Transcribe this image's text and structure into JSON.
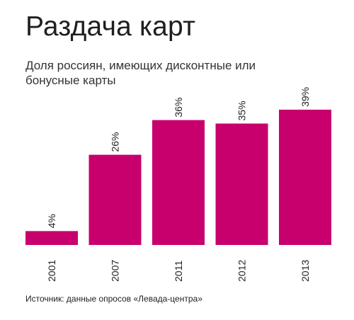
{
  "header": {
    "title": "Раздача карт",
    "subtitle": "Доля россиян, имеющих дисконтные или бонусные карты"
  },
  "footer": {
    "source": "Источник: данные опросов «Левада-центра»"
  },
  "colors": {
    "bar": "#c8006e"
  },
  "chart_data": {
    "type": "bar",
    "title": "Раздача карт",
    "subtitle": "Доля россиян, имеющих дисконтные или бонусные карты",
    "categories": [
      "2001",
      "2007",
      "2011",
      "2012",
      "2013"
    ],
    "values": [
      4,
      26,
      36,
      35,
      39
    ],
    "value_labels": [
      "4%",
      "26%",
      "36%",
      "35%",
      "39%"
    ],
    "unit": "%",
    "ylim": [
      0,
      40
    ],
    "grid": false,
    "legend": "none",
    "label_orientation": "vertical"
  }
}
